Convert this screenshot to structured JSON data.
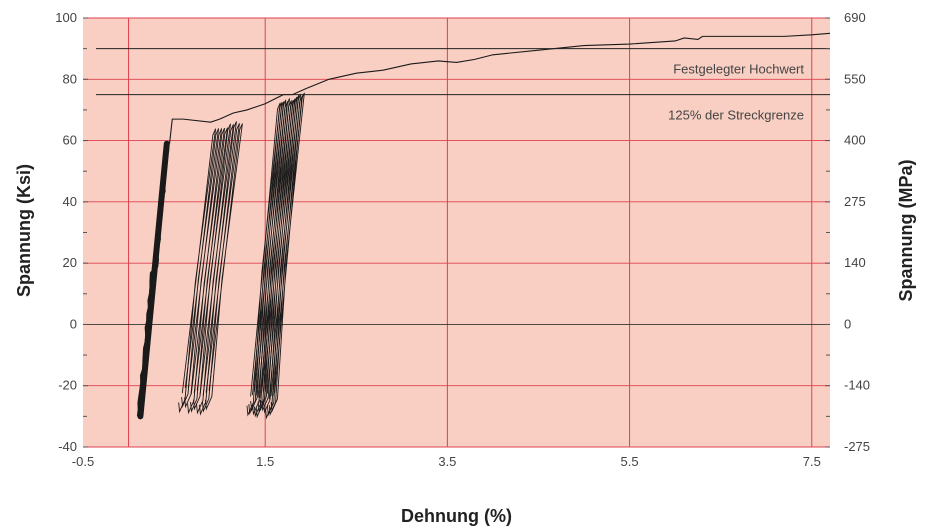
{
  "chart_data": {
    "type": "line",
    "xlabel": "Dehnung (%)",
    "ylabel": "Spannung (Ksi)",
    "ylabel_right": "Spannung (MPa)",
    "xlim": [
      -0.5,
      7.7
    ],
    "ylim": [
      -40,
      100
    ],
    "x_ticks": [
      "-0.5",
      "1.5",
      "3.5",
      "5.5",
      "7.5"
    ],
    "x_tick_values": [
      -0.5,
      1.5,
      3.5,
      5.5,
      7.5
    ],
    "y_ticks": [
      "100",
      "80",
      "60",
      "40",
      "20",
      "0",
      "-20",
      "-40"
    ],
    "y_tick_values": [
      100,
      80,
      60,
      40,
      20,
      0,
      -20,
      -40
    ],
    "y_right_ticks": [
      "690",
      "550",
      "400",
      "275",
      "140",
      "0",
      "-140",
      "-275"
    ],
    "grid": true,
    "colors": {
      "background": "#f8cfc2",
      "grid": "#e04050",
      "curve": "#1a1a1a"
    },
    "reference_lines": [
      {
        "label": "Festgelegter Hochwert",
        "y": 90
      },
      {
        "label": "125% der Streckgrenze",
        "y": 75
      }
    ],
    "x_reference_lines": [
      0,
      1.5,
      3.5,
      5.5,
      7.5
    ],
    "envelope": {
      "x": [
        0.45,
        0.48,
        0.6,
        0.9,
        1.0,
        1.15,
        1.3,
        1.5,
        1.7,
        1.8,
        1.95,
        2.2,
        2.5,
        2.8,
        3.1,
        3.4,
        3.6,
        3.8,
        4.0,
        4.5,
        5.0,
        5.5,
        6.0,
        6.1,
        6.25,
        6.3,
        6.7,
        7.2,
        7.5,
        7.7
      ],
      "y": [
        59,
        67,
        67,
        66,
        67,
        69,
        70,
        72,
        75,
        75,
        77,
        80,
        82,
        83,
        85,
        86,
        85.5,
        86.5,
        88,
        89.5,
        91,
        91.5,
        92.5,
        93.5,
        93,
        94,
        94,
        94,
        94.5,
        95
      ]
    },
    "cycle_groups": [
      {
        "x_min": 0.1,
        "x_max": 0.42,
        "y_min": -30,
        "y_max": 59,
        "cycles": 1,
        "dense": true
      },
      {
        "x_min": 0.55,
        "x_max": 1.25,
        "y_min": -28,
        "y_max": 67,
        "cycles": 10,
        "dense": false
      },
      {
        "x_min": 1.3,
        "x_max": 1.93,
        "y_min": -29,
        "y_max": 76,
        "cycles": 14,
        "dense": false
      }
    ]
  }
}
